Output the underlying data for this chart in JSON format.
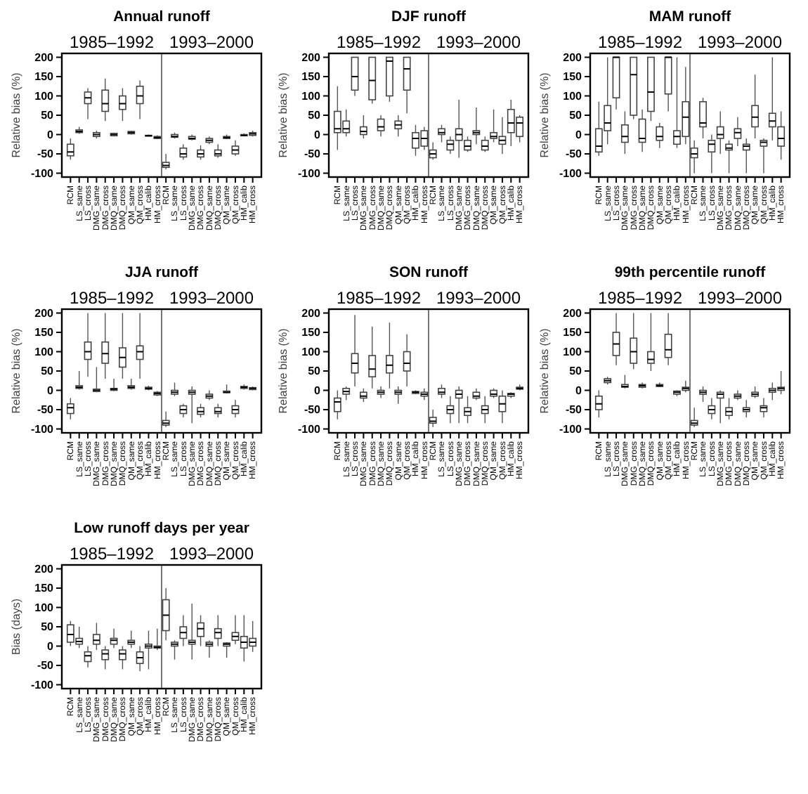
{
  "chart_data": [
    {
      "type": "box",
      "title": "Annual runoff",
      "ylabel": "Relative bias (%)",
      "annotations": [
        "1985–1992",
        "1993–2000"
      ],
      "ylim": [
        -110,
        210
      ],
      "yticks": [
        -100,
        -50,
        0,
        50,
        100,
        150,
        200
      ],
      "categories": [
        "RCM",
        "LS_same",
        "LS_cross",
        "DMG_same",
        "DMG_cross",
        "DMQ_same",
        "DMQ_cross",
        "QM_same",
        "QM_cross",
        "HM_calib",
        "HM_cross",
        "RCM",
        "LS_same",
        "LS_cross",
        "DMG_same",
        "DMG_cross",
        "DMQ_same",
        "DMQ_cross",
        "QM_same",
        "QM_cross",
        "HM_calib",
        "HM_cross"
      ],
      "boxes": [
        {
          "low": -65,
          "q1": -55,
          "median": -45,
          "q3": -25,
          "high": -10
        },
        {
          "low": 2,
          "q1": 5,
          "median": 8,
          "q3": 12,
          "high": 20
        },
        {
          "low": 40,
          "q1": 80,
          "median": 95,
          "q3": 110,
          "high": 120
        },
        {
          "low": -10,
          "q1": -5,
          "median": 0,
          "q3": 5,
          "high": 10
        },
        {
          "low": 35,
          "q1": 60,
          "median": 80,
          "q3": 115,
          "high": 145
        },
        {
          "low": -5,
          "q1": -3,
          "median": 0,
          "q3": 3,
          "high": 5
        },
        {
          "low": 35,
          "q1": 65,
          "median": 80,
          "q3": 100,
          "high": 120
        },
        {
          "low": 0,
          "q1": 2,
          "median": 5,
          "q3": 8,
          "high": 10
        },
        {
          "low": 40,
          "q1": 80,
          "median": 100,
          "q3": 125,
          "high": 140
        },
        {
          "low": -5,
          "q1": -4,
          "median": -3,
          "q3": -2,
          "high": 0
        },
        {
          "low": -12,
          "q1": -10,
          "median": -8,
          "q3": -5,
          "high": -2
        },
        {
          "low": -90,
          "q1": -85,
          "median": -80,
          "q3": -72,
          "high": -50
        },
        {
          "low": -10,
          "q1": -7,
          "median": -5,
          "q3": 0,
          "high": 5
        },
        {
          "low": -65,
          "q1": -58,
          "median": -50,
          "q3": -35,
          "high": -25
        },
        {
          "low": -15,
          "q1": -12,
          "median": -10,
          "q3": -5,
          "high": 0
        },
        {
          "low": -65,
          "q1": -58,
          "median": -50,
          "q3": -40,
          "high": -28
        },
        {
          "low": -25,
          "q1": -20,
          "median": -15,
          "q3": -10,
          "high": -5
        },
        {
          "low": -60,
          "q1": -55,
          "median": -50,
          "q3": -40,
          "high": -25
        },
        {
          "low": -12,
          "q1": -10,
          "median": -8,
          "q3": -5,
          "high": 0
        },
        {
          "low": -55,
          "q1": -50,
          "median": -40,
          "q3": -30,
          "high": -15
        },
        {
          "low": -5,
          "q1": -3,
          "median": -2,
          "q3": 0,
          "high": 3
        },
        {
          "low": -5,
          "q1": -2,
          "median": 2,
          "q3": 5,
          "high": 10
        }
      ]
    },
    {
      "type": "box",
      "title": "DJF runoff",
      "ylabel": "Relative bias (%)",
      "annotations": [
        "1985–1992",
        "1993–2000"
      ],
      "ylim": [
        -110,
        210
      ],
      "yticks": [
        -100,
        -50,
        0,
        50,
        100,
        150,
        200
      ],
      "categories": [
        "RCM",
        "LS_same",
        "LS_cross",
        "DMG_same",
        "DMG_cross",
        "DMQ_same",
        "DMQ_cross",
        "QM_same",
        "QM_cross",
        "HM_calib",
        "HM_cross",
        "RCM",
        "LS_same",
        "LS_cross",
        "DMG_same",
        "DMG_cross",
        "DMQ_same",
        "DMQ_cross",
        "QM_same",
        "QM_cross",
        "HM_calib",
        "HM_cross"
      ],
      "boxes": [
        {
          "low": -40,
          "q1": 5,
          "median": 15,
          "q3": 60,
          "high": 125
        },
        {
          "low": -5,
          "q1": 5,
          "median": 15,
          "q3": 35,
          "high": 65
        },
        {
          "low": 100,
          "q1": 115,
          "median": 150,
          "q3": 200,
          "high": 200
        },
        {
          "low": -10,
          "q1": 0,
          "median": 8,
          "q3": 20,
          "high": 50
        },
        {
          "low": 80,
          "q1": 90,
          "median": 140,
          "q3": 200,
          "high": 200
        },
        {
          "low": -5,
          "q1": 10,
          "median": 20,
          "q3": 40,
          "high": 50
        },
        {
          "low": 85,
          "q1": 100,
          "median": 190,
          "q3": 200,
          "high": 200
        },
        {
          "low": -5,
          "q1": 15,
          "median": 25,
          "q3": 35,
          "high": 50
        },
        {
          "low": 55,
          "q1": 115,
          "median": 170,
          "q3": 200,
          "high": 200
        },
        {
          "low": -55,
          "q1": -35,
          "median": -10,
          "q3": 5,
          "high": 25
        },
        {
          "low": -40,
          "q1": -30,
          "median": -10,
          "q3": 10,
          "high": 20
        },
        {
          "low": -65,
          "q1": -60,
          "median": -50,
          "q3": -40,
          "high": -20
        },
        {
          "low": -20,
          "q1": 0,
          "median": 5,
          "q3": 15,
          "high": 25
        },
        {
          "low": -50,
          "q1": -40,
          "median": -25,
          "q3": -15,
          "high": -5
        },
        {
          "low": -60,
          "q1": -15,
          "median": 0,
          "q3": 15,
          "high": 90
        },
        {
          "low": -45,
          "q1": -40,
          "median": -30,
          "q3": -15,
          "high": -5
        },
        {
          "low": -25,
          "q1": 0,
          "median": 5,
          "q3": 10,
          "high": 70
        },
        {
          "low": -45,
          "q1": -40,
          "median": -30,
          "q3": -15,
          "high": -5
        },
        {
          "low": -20,
          "q1": -10,
          "median": -5,
          "q3": 5,
          "high": 65
        },
        {
          "low": -50,
          "q1": -25,
          "median": -15,
          "q3": -5,
          "high": 45
        },
        {
          "low": -30,
          "q1": 5,
          "median": 30,
          "q3": 65,
          "high": 90
        },
        {
          "low": -20,
          "q1": -5,
          "median": 30,
          "q3": 45,
          "high": 50
        }
      ]
    },
    {
      "type": "box",
      "title": "MAM runoff",
      "ylabel": "Relative bias (%)",
      "annotations": [
        "1985–1992",
        "1993–2000"
      ],
      "ylim": [
        -110,
        210
      ],
      "yticks": [
        -100,
        -50,
        0,
        50,
        100,
        150,
        200
      ],
      "categories": [
        "RCM",
        "LS_same",
        "LS_cross",
        "DMG_same",
        "DMG_cross",
        "DMQ_same",
        "DMQ_cross",
        "QM_same",
        "QM_cross",
        "HM_calib",
        "HM_cross",
        "RCM",
        "LS_same",
        "LS_cross",
        "DMG_same",
        "DMG_cross",
        "DMQ_same",
        "DMQ_cross",
        "QM_same",
        "QM_cross",
        "HM_calib",
        "HM_cross"
      ],
      "boxes": [
        {
          "low": -55,
          "q1": -45,
          "median": -30,
          "q3": 15,
          "high": 85
        },
        {
          "low": -25,
          "q1": 10,
          "median": 30,
          "q3": 75,
          "high": 200
        },
        {
          "low": 65,
          "q1": 95,
          "median": 200,
          "q3": 200,
          "high": 200
        },
        {
          "low": -50,
          "q1": -20,
          "median": -5,
          "q3": 25,
          "high": 60
        },
        {
          "low": 40,
          "q1": 50,
          "median": 155,
          "q3": 200,
          "high": 200
        },
        {
          "low": -45,
          "q1": -20,
          "median": -10,
          "q3": 40,
          "high": 65
        },
        {
          "low": 35,
          "q1": 60,
          "median": 110,
          "q3": 200,
          "high": 200
        },
        {
          "low": -35,
          "q1": -15,
          "median": -5,
          "q3": 20,
          "high": 30
        },
        {
          "low": 60,
          "q1": 105,
          "median": 200,
          "q3": 200,
          "high": 200
        },
        {
          "low": -35,
          "q1": -25,
          "median": -5,
          "q3": 10,
          "high": 200
        },
        {
          "low": -25,
          "q1": -5,
          "median": 45,
          "q3": 85,
          "high": 175
        },
        {
          "low": -100,
          "q1": -60,
          "median": -50,
          "q3": -35,
          "high": -15
        },
        {
          "low": -10,
          "q1": 20,
          "median": 30,
          "q3": 85,
          "high": 95
        },
        {
          "low": -100,
          "q1": -45,
          "median": -25,
          "q3": -15,
          "high": 0
        },
        {
          "low": -50,
          "q1": -10,
          "median": 0,
          "q3": 20,
          "high": 60
        },
        {
          "low": -100,
          "q1": -40,
          "median": -35,
          "q3": -25,
          "high": -15
        },
        {
          "low": -30,
          "q1": -10,
          "median": 5,
          "q3": 15,
          "high": 45
        },
        {
          "low": -100,
          "q1": -40,
          "median": -30,
          "q3": -25,
          "high": -10
        },
        {
          "low": -10,
          "q1": 20,
          "median": 45,
          "q3": 75,
          "high": 155
        },
        {
          "low": -100,
          "q1": -30,
          "median": -20,
          "q3": -15,
          "high": -10
        },
        {
          "low": -15,
          "q1": 20,
          "median": 35,
          "q3": 55,
          "high": 200
        },
        {
          "low": -65,
          "q1": -30,
          "median": -10,
          "q3": 20,
          "high": 60
        }
      ]
    },
    {
      "type": "box",
      "title": "JJA runoff",
      "ylabel": "Relative bias (%)",
      "annotations": [
        "1985–1992",
        "1993–2000"
      ],
      "ylim": [
        -110,
        210
      ],
      "yticks": [
        -100,
        -50,
        0,
        50,
        100,
        150,
        200
      ],
      "categories": [
        "RCM",
        "LS_same",
        "LS_cross",
        "DMG_same",
        "DMG_cross",
        "DMQ_same",
        "DMQ_cross",
        "QM_same",
        "QM_cross",
        "HM_calib",
        "HM_cross",
        "RCM",
        "LS_same",
        "LS_cross",
        "DMG_same",
        "DMG_cross",
        "DMQ_same",
        "DMQ_cross",
        "QM_same",
        "QM_cross",
        "HM_calib",
        "HM_cross"
      ],
      "boxes": [
        {
          "low": -75,
          "q1": -60,
          "median": -45,
          "q3": -35,
          "high": -20
        },
        {
          "low": 2,
          "q1": 5,
          "median": 8,
          "q3": 12,
          "high": 50
        },
        {
          "low": 35,
          "q1": 80,
          "median": 100,
          "q3": 125,
          "high": 200
        },
        {
          "low": -5,
          "q1": -3,
          "median": 0,
          "q3": 3,
          "high": 60
        },
        {
          "low": 30,
          "q1": 70,
          "median": 95,
          "q3": 125,
          "high": 200
        },
        {
          "low": -2,
          "q1": 0,
          "median": 3,
          "q3": 5,
          "high": 30
        },
        {
          "low": 30,
          "q1": 60,
          "median": 85,
          "q3": 110,
          "high": 200
        },
        {
          "low": 2,
          "q1": 5,
          "median": 8,
          "q3": 12,
          "high": 30
        },
        {
          "low": 30,
          "q1": 80,
          "median": 100,
          "q3": 115,
          "high": 200
        },
        {
          "low": 0,
          "q1": 3,
          "median": 5,
          "q3": 8,
          "high": 12
        },
        {
          "low": -15,
          "q1": -12,
          "median": -8,
          "q3": -5,
          "high": -2
        },
        {
          "low": -95,
          "q1": -90,
          "median": -85,
          "q3": -78,
          "high": -55
        },
        {
          "low": -15,
          "q1": -10,
          "median": -5,
          "q3": 0,
          "high": 20
        },
        {
          "low": -70,
          "q1": -60,
          "median": -50,
          "q3": -40,
          "high": -35
        },
        {
          "low": -85,
          "q1": -10,
          "median": -5,
          "q3": 0,
          "high": 10
        },
        {
          "low": -70,
          "q1": -62,
          "median": -55,
          "q3": -45,
          "high": -35
        },
        {
          "low": -25,
          "q1": -20,
          "median": -15,
          "q3": -10,
          "high": 0
        },
        {
          "low": -70,
          "q1": -60,
          "median": -55,
          "q3": -45,
          "high": -35
        },
        {
          "low": -8,
          "q1": -6,
          "median": -5,
          "q3": -2,
          "high": 15
        },
        {
          "low": -70,
          "q1": -60,
          "median": -50,
          "q3": -40,
          "high": -25
        },
        {
          "low": 2,
          "q1": 5,
          "median": 8,
          "q3": 10,
          "high": 15
        },
        {
          "low": 0,
          "q1": 2,
          "median": 5,
          "q3": 7,
          "high": 10
        }
      ]
    },
    {
      "type": "box",
      "title": "SON runoff",
      "ylabel": "Relative bias (%)",
      "annotations": [
        "1985–1992",
        "1993–2000"
      ],
      "ylim": [
        -110,
        210
      ],
      "yticks": [
        -100,
        -50,
        0,
        50,
        100,
        150,
        200
      ],
      "categories": [
        "RCM",
        "LS_same",
        "LS_cross",
        "DMG_same",
        "DMG_cross",
        "DMQ_same",
        "DMQ_cross",
        "QM_same",
        "QM_cross",
        "HM_calib",
        "HM_cross",
        "RCM",
        "LS_same",
        "LS_cross",
        "DMG_same",
        "DMG_cross",
        "DMQ_same",
        "DMQ_cross",
        "QM_same",
        "QM_cross",
        "HM_calib",
        "HM_cross"
      ],
      "boxes": [
        {
          "low": -75,
          "q1": -55,
          "median": -30,
          "q3": -20,
          "high": 0
        },
        {
          "low": -25,
          "q1": -10,
          "median": -3,
          "q3": 5,
          "high": 10
        },
        {
          "low": 10,
          "q1": 45,
          "median": 70,
          "q3": 95,
          "high": 195
        },
        {
          "low": -30,
          "q1": -20,
          "median": -15,
          "q3": -5,
          "high": 5
        },
        {
          "low": 5,
          "q1": 35,
          "median": 55,
          "q3": 90,
          "high": 165
        },
        {
          "low": -20,
          "q1": -10,
          "median": -5,
          "q3": 0,
          "high": 10
        },
        {
          "low": 5,
          "q1": 45,
          "median": 65,
          "q3": 90,
          "high": 175
        },
        {
          "low": -35,
          "q1": -10,
          "median": -5,
          "q3": 0,
          "high": 10
        },
        {
          "low": 10,
          "q1": 50,
          "median": 70,
          "q3": 100,
          "high": 145
        },
        {
          "low": -10,
          "q1": -8,
          "median": -5,
          "q3": -3,
          "high": 0
        },
        {
          "low": -25,
          "q1": -15,
          "median": -10,
          "q3": -5,
          "high": 5
        },
        {
          "low": -95,
          "q1": -85,
          "median": -80,
          "q3": -70,
          "high": -50
        },
        {
          "low": -20,
          "q1": -10,
          "median": -5,
          "q3": 5,
          "high": 15
        },
        {
          "low": -85,
          "q1": -60,
          "median": -50,
          "q3": -40,
          "high": -15
        },
        {
          "low": -85,
          "q1": -20,
          "median": -10,
          "q3": 0,
          "high": 10
        },
        {
          "low": -85,
          "q1": -65,
          "median": -55,
          "q3": -45,
          "high": -15
        },
        {
          "low": -25,
          "q1": -20,
          "median": -15,
          "q3": -5,
          "high": 5
        },
        {
          "low": -85,
          "q1": -60,
          "median": -50,
          "q3": -40,
          "high": -15
        },
        {
          "low": -20,
          "q1": -15,
          "median": -10,
          "q3": 0,
          "high": 5
        },
        {
          "low": -85,
          "q1": -55,
          "median": -35,
          "q3": -15,
          "high": 0
        },
        {
          "low": -20,
          "q1": -15,
          "median": -10,
          "q3": -8,
          "high": -5
        },
        {
          "low": 0,
          "q1": 3,
          "median": 5,
          "q3": 8,
          "high": 15
        }
      ]
    },
    {
      "type": "box",
      "title": "99th percentile runoff",
      "ylabel": "Relative bias (%)",
      "annotations": [
        "1985–1992",
        "1993–2000"
      ],
      "ylim": [
        -110,
        210
      ],
      "yticks": [
        -100,
        -50,
        0,
        50,
        100,
        150,
        200
      ],
      "categories": [
        "RCM",
        "LS_same",
        "LS_cross",
        "DMG_same",
        "DMG_cross",
        "DMQ_same",
        "DMQ_cross",
        "QM_same",
        "QM_cross",
        "HM_calib",
        "HM_cross",
        "RCM",
        "LS_same",
        "LS_cross",
        "DMG_same",
        "DMG_cross",
        "DMQ_same",
        "DMQ_cross",
        "QM_same",
        "QM_cross",
        "HM_calib",
        "HM_cross"
      ],
      "boxes": [
        {
          "low": -70,
          "q1": -50,
          "median": -35,
          "q3": -15,
          "high": 0
        },
        {
          "low": 15,
          "q1": 20,
          "median": 25,
          "q3": 30,
          "high": 35
        },
        {
          "low": 65,
          "q1": 90,
          "median": 120,
          "q3": 150,
          "high": 200
        },
        {
          "low": 5,
          "q1": 8,
          "median": 10,
          "q3": 15,
          "high": 40
        },
        {
          "low": 55,
          "q1": 70,
          "median": 100,
          "q3": 135,
          "high": 200
        },
        {
          "low": 5,
          "q1": 8,
          "median": 12,
          "q3": 15,
          "high": 20
        },
        {
          "low": 50,
          "q1": 70,
          "median": 80,
          "q3": 100,
          "high": 200
        },
        {
          "low": 8,
          "q1": 10,
          "median": 12,
          "q3": 15,
          "high": 20
        },
        {
          "low": 65,
          "q1": 85,
          "median": 105,
          "q3": 145,
          "high": 200
        },
        {
          "low": -15,
          "q1": -10,
          "median": -5,
          "q3": -2,
          "high": 0
        },
        {
          "low": -5,
          "q1": 0,
          "median": 5,
          "q3": 8,
          "high": 25
        },
        {
          "low": -95,
          "q1": -90,
          "median": -85,
          "q3": -78,
          "high": -45
        },
        {
          "low": -30,
          "q1": -10,
          "median": -5,
          "q3": 0,
          "high": 10
        },
        {
          "low": -75,
          "q1": -60,
          "median": -50,
          "q3": -40,
          "high": -20
        },
        {
          "low": -85,
          "q1": -20,
          "median": -10,
          "q3": -5,
          "high": 0
        },
        {
          "low": -75,
          "q1": -65,
          "median": -55,
          "q3": -45,
          "high": -20
        },
        {
          "low": -25,
          "q1": -20,
          "median": -15,
          "q3": -10,
          "high": 0
        },
        {
          "low": -70,
          "q1": -55,
          "median": -50,
          "q3": -45,
          "high": -25
        },
        {
          "low": -20,
          "q1": -15,
          "median": -10,
          "q3": -5,
          "high": 10
        },
        {
          "low": -70,
          "q1": -55,
          "median": -45,
          "q3": -40,
          "high": -20
        },
        {
          "low": -25,
          "q1": -5,
          "median": 0,
          "q3": 5,
          "high": 20
        },
        {
          "low": -10,
          "q1": 0,
          "median": 5,
          "q3": 8,
          "high": 50
        }
      ]
    },
    {
      "type": "box",
      "title": "Low runoff days per year",
      "ylabel": "Bias (days)",
      "annotations": [
        "1985–1992",
        "1993–2000"
      ],
      "ylim": [
        -110,
        210
      ],
      "yticks": [
        -100,
        -50,
        0,
        50,
        100,
        150,
        200
      ],
      "categories": [
        "RCM",
        "LS_same",
        "LS_cross",
        "DMG_same",
        "DMG_cross",
        "DMQ_same",
        "DMQ_cross",
        "QM_same",
        "QM_cross",
        "HM_calib",
        "HM_cross",
        "RCM",
        "LS_same",
        "LS_cross",
        "DMG_same",
        "DMG_cross",
        "DMQ_same",
        "DMQ_cross",
        "QM_same",
        "QM_cross",
        "HM_calib",
        "HM_cross"
      ],
      "boxes": [
        {
          "low": 0,
          "q1": 10,
          "median": 30,
          "q3": 55,
          "high": 65
        },
        {
          "low": -5,
          "q1": 5,
          "median": 12,
          "q3": 20,
          "high": 50
        },
        {
          "low": -55,
          "q1": -40,
          "median": -25,
          "q3": -15,
          "high": 0
        },
        {
          "low": -10,
          "q1": 5,
          "median": 15,
          "q3": 30,
          "high": 60
        },
        {
          "low": -60,
          "q1": -35,
          "median": -20,
          "q3": -10,
          "high": 0
        },
        {
          "low": -5,
          "q1": 5,
          "median": 15,
          "q3": 20,
          "high": 45
        },
        {
          "low": -60,
          "q1": -35,
          "median": -20,
          "q3": -10,
          "high": 0
        },
        {
          "low": -5,
          "q1": 5,
          "median": 10,
          "q3": 15,
          "high": 40
        },
        {
          "low": -65,
          "q1": -45,
          "median": -30,
          "q3": -15,
          "high": 0
        },
        {
          "low": -60,
          "q1": -5,
          "median": 0,
          "q3": 5,
          "high": 40
        },
        {
          "low": -10,
          "q1": -5,
          "median": -3,
          "q3": 0,
          "high": 45
        },
        {
          "low": 15,
          "q1": 40,
          "median": 80,
          "q3": 120,
          "high": 150
        },
        {
          "low": -35,
          "q1": 0,
          "median": 5,
          "q3": 10,
          "high": 15
        },
        {
          "low": 0,
          "q1": 20,
          "median": 35,
          "q3": 50,
          "high": 80
        },
        {
          "low": -35,
          "q1": 5,
          "median": 10,
          "q3": 15,
          "high": 110
        },
        {
          "low": 0,
          "q1": 25,
          "median": 45,
          "q3": 60,
          "high": 80
        },
        {
          "low": -30,
          "q1": 0,
          "median": 5,
          "q3": 10,
          "high": 15
        },
        {
          "low": 0,
          "q1": 20,
          "median": 35,
          "q3": 45,
          "high": 80
        },
        {
          "low": -30,
          "q1": 0,
          "median": 5,
          "q3": 8,
          "high": 10
        },
        {
          "low": 5,
          "q1": 15,
          "median": 25,
          "q3": 35,
          "high": 80
        },
        {
          "low": -40,
          "q1": -5,
          "median": 10,
          "q3": 25,
          "high": 80
        },
        {
          "low": -15,
          "q1": 0,
          "median": 10,
          "q3": 20,
          "high": 65
        }
      ]
    }
  ]
}
